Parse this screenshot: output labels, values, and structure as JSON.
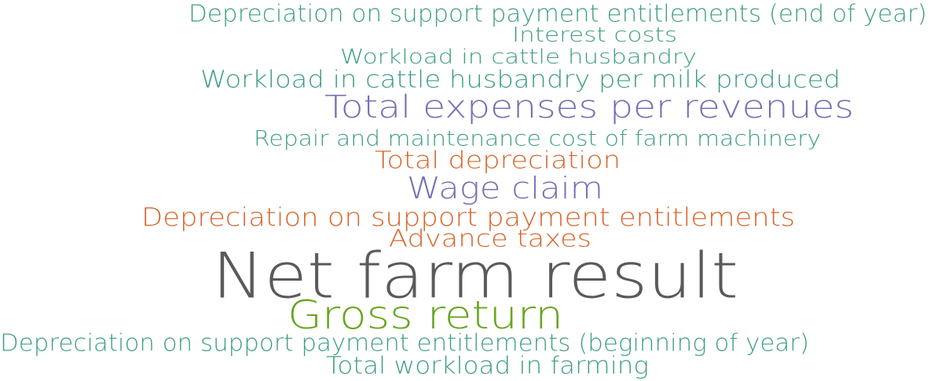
{
  "words": [
    {
      "text": "Depreciation on support payment entitlements (end of year)",
      "color": "#3f9e84"
    },
    {
      "text": "Interest costs",
      "color": "#3f9e84"
    },
    {
      "text": "Workload in cattle husbandry",
      "color": "#3f9e84"
    },
    {
      "text": "Workload in cattle husbandry per milk produced",
      "color": "#3f9e84"
    },
    {
      "text": "Total expenses per revenues",
      "color": "#7570b3"
    },
    {
      "text": "Repair and maintenance cost of farm machinery",
      "color": "#3f9e84"
    },
    {
      "text": "Total depreciation",
      "color": "#d9652a"
    },
    {
      "text": "Wage claim",
      "color": "#7570b3"
    },
    {
      "text": "Depreciation on support payment entitlements",
      "color": "#d9652a"
    },
    {
      "text": "Advance taxes",
      "color": "#d9652a"
    },
    {
      "text": "Net farm result",
      "color": "#5a5a5a"
    },
    {
      "text": "Gross return",
      "color": "#66a61e"
    },
    {
      "text": "Depreciation on support payment entitlements (beginning of year)",
      "color": "#3f9e84"
    },
    {
      "text": "Total workload in farming",
      "color": "#3f9e84"
    }
  ]
}
